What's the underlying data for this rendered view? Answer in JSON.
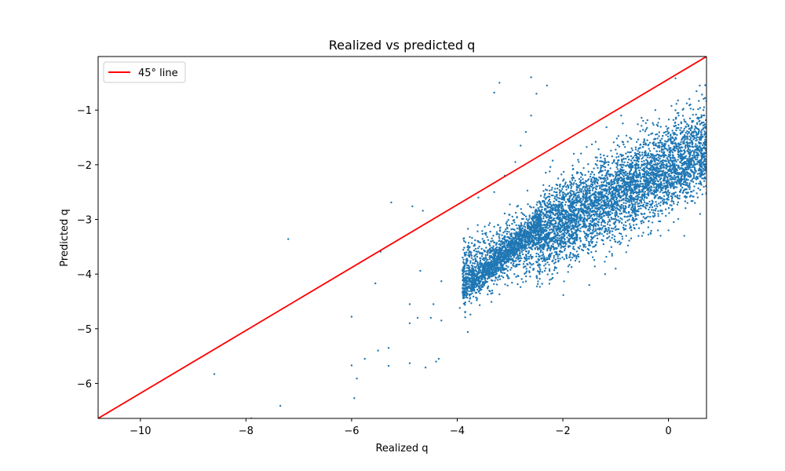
{
  "chart_data": {
    "type": "scatter",
    "title": "Realized vs predicted q",
    "xlabel": "Realized q",
    "ylabel": "Predicted q",
    "xlim": [
      -10.8,
      0.72
    ],
    "ylim": [
      -6.64,
      -0.02
    ],
    "xticks": [
      -10,
      -8,
      -6,
      -4,
      -2,
      0
    ],
    "yticks": [
      -6,
      -5,
      -4,
      -3,
      -2,
      -1
    ],
    "grid": false,
    "legend_position": "top-left",
    "series": [
      {
        "name": "",
        "color": "#1f77b4",
        "kind": "scatter",
        "points": [
          [
            -8.6,
            -5.83
          ],
          [
            -7.9,
            -6.64
          ],
          [
            -7.35,
            -6.41
          ],
          [
            -7.2,
            -3.36
          ],
          [
            -6.0,
            -4.78
          ],
          [
            -6.0,
            -5.67
          ],
          [
            -5.95,
            -6.27
          ],
          [
            -5.9,
            -5.91
          ],
          [
            -5.75,
            -5.55
          ],
          [
            -5.55,
            -4.17
          ],
          [
            -5.5,
            -5.4
          ],
          [
            -5.45,
            -3.59
          ],
          [
            -5.3,
            -5.68
          ],
          [
            -5.3,
            -5.35
          ],
          [
            -5.25,
            -2.69
          ],
          [
            -4.9,
            -4.55
          ],
          [
            -4.9,
            -5.63
          ],
          [
            -4.9,
            -4.9
          ],
          [
            -4.85,
            -2.76
          ],
          [
            -4.75,
            -4.8
          ],
          [
            -4.7,
            -3.94
          ],
          [
            -4.65,
            -2.84
          ],
          [
            -4.6,
            -5.71
          ],
          [
            -4.5,
            -4.8
          ],
          [
            -4.45,
            -4.55
          ],
          [
            -4.4,
            -5.6
          ],
          [
            -4.35,
            -5.55
          ],
          [
            -4.3,
            -4.85
          ],
          [
            -4.3,
            -4.13
          ],
          [
            -3.95,
            -4.62
          ],
          [
            -3.85,
            -4.7
          ],
          [
            -3.8,
            -5.06
          ],
          [
            -3.75,
            -4.74
          ],
          [
            -3.6,
            -2.6
          ],
          [
            -3.3,
            -2.5
          ],
          [
            -3.2,
            -4.37
          ],
          [
            -3.1,
            -2.2
          ],
          [
            -2.9,
            -1.95
          ],
          [
            -2.8,
            -1.65
          ],
          [
            -2.7,
            -1.4
          ],
          [
            -2.6,
            -1.1
          ],
          [
            -2.5,
            -0.7
          ],
          [
            -2.3,
            -0.55
          ],
          [
            -2.6,
            -0.4
          ],
          [
            -3.2,
            -0.5
          ],
          [
            -3.3,
            -0.68
          ],
          [
            -1.0,
            -3.9
          ],
          [
            -0.8,
            -3.6
          ],
          [
            -0.5,
            -3.3
          ],
          [
            -0.2,
            -3.2
          ],
          [
            0.1,
            -3.05
          ],
          [
            0.5,
            -2.7
          ],
          [
            0.6,
            -2.9
          ],
          [
            0.0,
            -3.2
          ],
          [
            0.3,
            -3.3
          ],
          [
            -0.8,
            -3.3
          ],
          [
            -1.5,
            -4.2
          ],
          [
            -1.2,
            -4.0
          ],
          [
            -2.2,
            -4.0
          ],
          [
            -2.0,
            -3.5
          ]
        ],
        "clusters": [
          {
            "x_range": [
              -3.9,
              0.72
            ],
            "center_ratio": 0.45,
            "spread": 0.55,
            "count": 2600
          },
          {
            "x_range": [
              -2.5,
              0.72
            ],
            "center_ratio": 0.55,
            "spread": 0.75,
            "count": 2600
          },
          {
            "x_range": [
              -3.9,
              -2.4
            ],
            "center_ratio": 0.88,
            "spread": 0.35,
            "count": 1200
          }
        ]
      },
      {
        "name": "45° line",
        "color": "#ff0000",
        "kind": "line",
        "x": [
          -10.8,
          0.72
        ],
        "y": [
          -6.64,
          -0.02
        ]
      }
    ]
  }
}
